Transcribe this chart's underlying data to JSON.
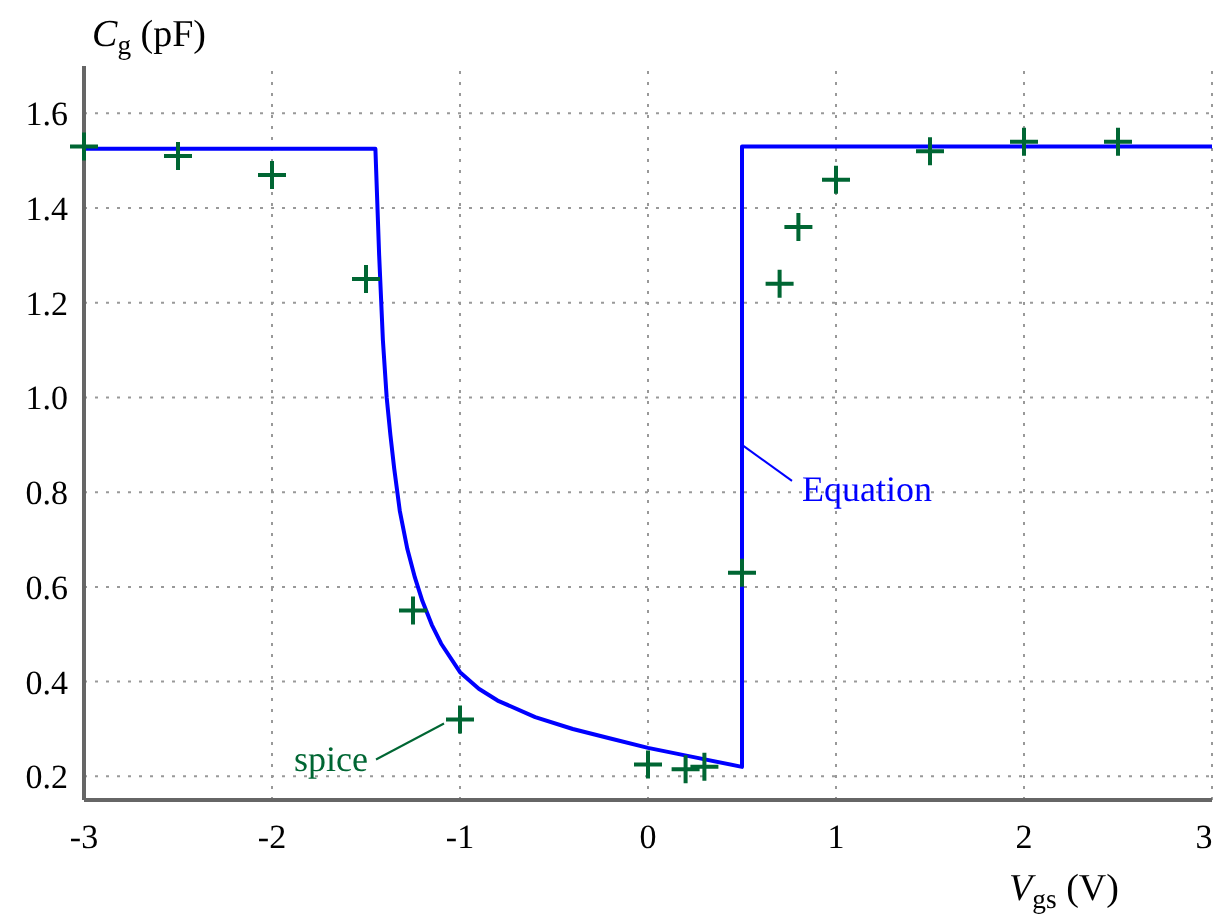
{
  "chart_data": {
    "type": "line",
    "xlabel": "V$_{gs}$ (V)",
    "ylabel": "C$_{g}$ (pF)",
    "xlim": [
      -3,
      3
    ],
    "xticks": [
      -3,
      -2,
      -1,
      0,
      1,
      2,
      3
    ],
    "ylim": [
      0.15,
      1.7
    ],
    "yticks": [
      {
        "value": 0.2,
        "label": "0.2"
      },
      {
        "value": 0.4,
        "label": "0.4"
      },
      {
        "value": 0.6,
        "label": "0.6"
      },
      {
        "value": 0.8,
        "label": "0.8"
      },
      {
        "value": 1.0,
        "label": "1.0"
      },
      {
        "value": 1.2,
        "label": "1.2"
      },
      {
        "value": 1.4,
        "label": "1.4"
      },
      {
        "value": 1.6,
        "label": "1.6"
      }
    ],
    "grid": true,
    "series": [
      {
        "name": "Equation",
        "color": "#0000ff",
        "line_style": "solid",
        "x": [
          -3,
          -1.45,
          -1.43,
          -1.41,
          -1.39,
          -1.37,
          -1.35,
          -1.32,
          -1.28,
          -1.24,
          -1.2,
          -1.15,
          -1.1,
          -1.0,
          -0.9,
          -0.8,
          -0.6,
          -0.4,
          -0.2,
          0,
          0.25,
          0.5,
          0.5,
          3
        ],
        "values": [
          1.525,
          1.525,
          1.3,
          1.12,
          1.0,
          0.92,
          0.85,
          0.76,
          0.68,
          0.62,
          0.57,
          0.52,
          0.48,
          0.42,
          0.385,
          0.36,
          0.325,
          0.3,
          0.28,
          0.26,
          0.24,
          0.22,
          1.53,
          1.53
        ]
      },
      {
        "name": "spice",
        "type": "scatter",
        "color": "#006633",
        "marker": "cross",
        "x": [
          -3,
          -2.5,
          -2,
          -1.5,
          -1.25,
          -1,
          0,
          0.2,
          0.3,
          0.5,
          0.7,
          0.8,
          1,
          1.5,
          2,
          2.5
        ],
        "values": [
          1.53,
          1.51,
          1.47,
          1.25,
          0.55,
          0.32,
          0.225,
          0.215,
          0.22,
          0.63,
          1.24,
          1.36,
          1.46,
          1.52,
          1.54,
          1.54
        ]
      }
    ]
  }
}
